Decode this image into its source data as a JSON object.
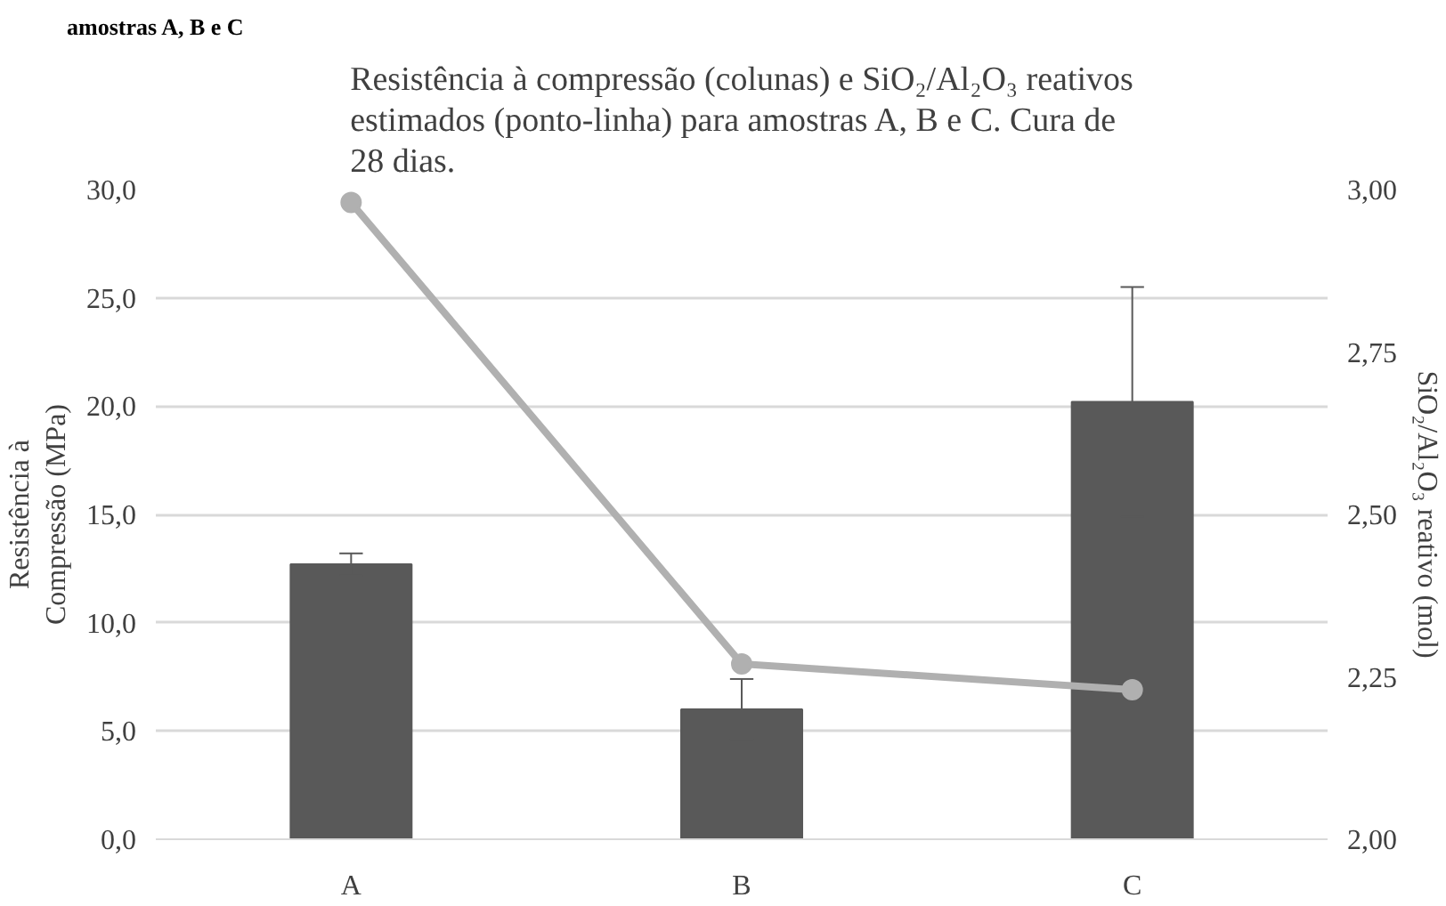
{
  "chart_data": {
    "type": "bar",
    "title": "Resistência à compressão (colunas) e SiO₂/Al₂O₃ reativos\nestimados (ponto-linha)  para amostras A, B e C. Cura de\n28 dias.",
    "ylabel": "Resistência à\nCompressão (MPa)",
    "y2label": "SiO₂/Al₂O₃ reativo (mol)",
    "annotations": [
      "amostras A, B e C"
    ],
    "categories": [
      "A",
      "B",
      "C"
    ],
    "series": [
      {
        "color": "#595959",
        "values": [
          12.7,
          6.0,
          20.2
        ],
        "errors": [
          0.5,
          1.4,
          5.3
        ]
      },
      {
        "type": "line",
        "axis": "y2",
        "color": "#b0b0b0",
        "values": [
          2.98,
          2.27,
          2.23
        ],
        "marker": "circle"
      }
    ],
    "ylim": [
      0,
      30
    ],
    "yticks": [
      {
        "value": 0,
        "label": "0,0"
      },
      {
        "value": 5,
        "label": "5,0"
      },
      {
        "value": 10,
        "label": "10,0"
      },
      {
        "value": 15,
        "label": "15,0"
      },
      {
        "value": 20,
        "label": "20,0"
      },
      {
        "value": 25,
        "label": "25,0"
      },
      {
        "value": 30,
        "label": "30,0"
      }
    ],
    "y2lim": [
      2,
      3
    ],
    "y2ticks": [
      {
        "value": 2,
        "label": "2,00"
      },
      {
        "value": 2.25,
        "label": "2,25"
      },
      {
        "value": 2.5,
        "label": "2,50"
      },
      {
        "value": 2.75,
        "label": "2,75"
      },
      {
        "value": 3,
        "label": "3,00"
      }
    ],
    "grid": "y"
  }
}
